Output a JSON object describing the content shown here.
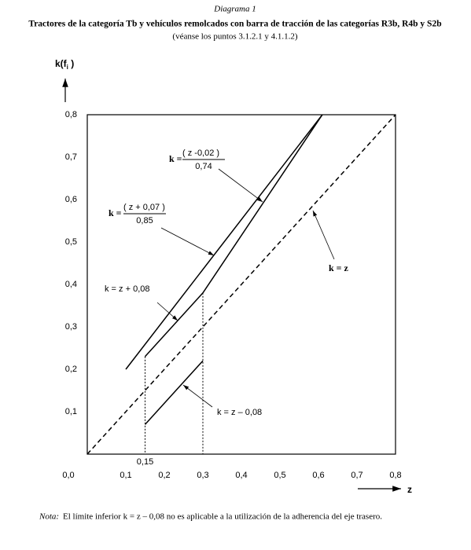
{
  "chart_data": {
    "type": "line",
    "header": "Diagrama 1",
    "title": "Tractores de la categoría Tb y vehículos remolcados con barra de tracción de las categorías R3b, R4b y S2b",
    "subtitle": "(véanse los puntos 3.1.2.1 y 4.1.1.2)",
    "y_label": {
      "main": "k(f",
      "sub": "i",
      "close": " )"
    },
    "x_label": "z",
    "xlim": [
      0,
      0.8
    ],
    "ylim": [
      0,
      0.8
    ],
    "xticks": [
      {
        "value": 0,
        "label": "0,0"
      },
      {
        "value": 0.1,
        "label": "0,1"
      },
      {
        "value": 0.2,
        "label": "0,2"
      },
      {
        "value": 0.3,
        "label": "0,3"
      },
      {
        "value": 0.4,
        "label": "0,4"
      },
      {
        "value": 0.5,
        "label": "0,5"
      },
      {
        "value": 0.6,
        "label": "0,6"
      },
      {
        "value": 0.7,
        "label": "0,7"
      },
      {
        "value": 0.8,
        "label": "0,8"
      }
    ],
    "xticks_extra": [
      {
        "value": 0.15,
        "label": "0,15"
      }
    ],
    "yticks": [
      {
        "value": 0.1,
        "label": "0,1"
      },
      {
        "value": 0.2,
        "label": "0,2"
      },
      {
        "value": 0.3,
        "label": "0,3"
      },
      {
        "value": 0.4,
        "label": "0,4"
      },
      {
        "value": 0.5,
        "label": "0,5"
      },
      {
        "value": 0.6,
        "label": "0,6"
      },
      {
        "value": 0.7,
        "label": "0,7"
      },
      {
        "value": 0.8,
        "label": "0,8"
      }
    ],
    "series": [
      {
        "color": "#000000",
        "dashed": true,
        "x": [
          0,
          0.8
        ],
        "values": [
          0,
          0.8
        ]
      },
      {
        "color": "#000000",
        "x": [
          0.1,
          0.61
        ],
        "values": [
          0.2,
          0.8
        ]
      },
      {
        "color": "#000000",
        "x": [
          0.15,
          0.3
        ],
        "values": [
          0.23,
          0.38
        ]
      },
      {
        "color": "#000000",
        "x": [
          0.3,
          0.61
        ],
        "values": [
          0.38,
          0.8
        ]
      },
      {
        "color": "#000000",
        "x": [
          0.15,
          0.3
        ],
        "values": [
          0.07,
          0.22
        ]
      }
    ],
    "annotations": [
      {
        "lhs": "k =",
        "numerator": "( z -0,02 )",
        "denominator": "0,74"
      },
      {
        "lhs": "k =",
        "numerator": "( z + 0,07 )",
        "denominator": "0,85"
      },
      {
        "text": "k = z + 0,08"
      },
      {
        "text": "k = z"
      },
      {
        "text": "k = z – 0,08"
      }
    ],
    "note_label": "Nota:",
    "note": "El límite inferior k = z – 0,08 no es aplicable a la utilización de la adherencia del eje trasero."
  }
}
